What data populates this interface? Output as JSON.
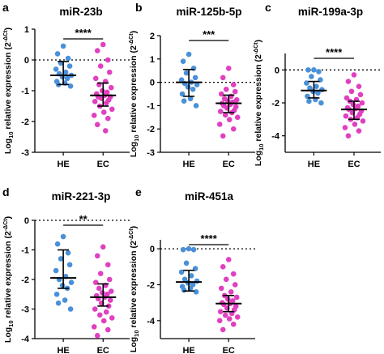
{
  "colors": {
    "HE": "#4a90d9",
    "EC": "#e040c0",
    "axis": "#000000",
    "errorbar": "#000000"
  },
  "ylabel": {
    "main_a": "Log",
    "sub": "10",
    "main_b": " relative expression (2",
    "sup": "-ΔCt",
    "main_c": ")"
  },
  "chart_data": [
    {
      "letter": "a",
      "type": "scatter",
      "title": "miR-23b",
      "categories": [
        "HE",
        "EC"
      ],
      "ylim": [
        -3,
        1
      ],
      "yticks": [
        1,
        0,
        -1,
        -2,
        -3
      ],
      "reference_line": 0,
      "significance": "****",
      "series": [
        {
          "name": "HE",
          "median": -0.5,
          "iqr": [
            -0.8,
            -0.05
          ],
          "values": [
            0.45,
            0.2,
            0.05,
            -0.1,
            -0.2,
            -0.3,
            -0.4,
            -0.45,
            -0.5,
            -0.55,
            -0.6,
            -0.7,
            -0.75,
            -0.8,
            -0.85
          ]
        },
        {
          "name": "EC",
          "median": -1.15,
          "iqr": [
            -1.5,
            -0.75
          ],
          "values": [
            0.5,
            0.3,
            0.0,
            -0.2,
            -0.4,
            -0.6,
            -0.7,
            -0.8,
            -0.9,
            -1.0,
            -1.05,
            -1.1,
            -1.15,
            -1.2,
            -1.2,
            -1.25,
            -1.3,
            -1.35,
            -1.4,
            -1.5,
            -1.6,
            -1.7,
            -1.8,
            -1.9,
            -2.1,
            -2.3
          ]
        }
      ]
    },
    {
      "letter": "b",
      "type": "scatter",
      "title": "miR-125b-5p",
      "categories": [
        "HE",
        "EC"
      ],
      "ylim": [
        -3,
        2
      ],
      "yticks": [
        2,
        1,
        0,
        -1,
        -2,
        -3
      ],
      "reference_line": 0,
      "significance": "***",
      "series": [
        {
          "name": "HE",
          "median": 0.0,
          "iqr": [
            -0.6,
            0.55
          ],
          "values": [
            1.2,
            0.9,
            0.6,
            0.4,
            0.2,
            0.1,
            0.0,
            -0.05,
            -0.1,
            -0.2,
            -0.3,
            -0.5,
            -0.7,
            -0.8,
            -1.0
          ]
        },
        {
          "name": "EC",
          "median": -0.9,
          "iqr": [
            -1.3,
            -0.55
          ],
          "values": [
            0.6,
            0.2,
            -0.1,
            -0.3,
            -0.4,
            -0.5,
            -0.6,
            -0.7,
            -0.75,
            -0.8,
            -0.85,
            -0.9,
            -0.95,
            -1.0,
            -1.05,
            -1.1,
            -1.2,
            -1.25,
            -1.3,
            -1.4,
            -1.5,
            -1.6,
            -1.8,
            -2.0,
            -2.3
          ]
        }
      ]
    },
    {
      "letter": "c",
      "type": "scatter",
      "title": "miR-199a-3p",
      "categories": [
        "HE",
        "EC"
      ],
      "ylim": [
        -5,
        1
      ],
      "yticks": [
        0,
        -2,
        -4
      ],
      "reference_line": 0,
      "significance": "****",
      "series": [
        {
          "name": "HE",
          "median": -1.25,
          "iqr": [
            -1.7,
            -0.7
          ],
          "values": [
            0.0,
            0.0,
            -0.1,
            -0.4,
            -0.6,
            -0.8,
            -1.0,
            -1.1,
            -1.2,
            -1.3,
            -1.4,
            -1.6,
            -1.8,
            -1.9,
            -2.0
          ]
        },
        {
          "name": "EC",
          "median": -2.4,
          "iqr": [
            -3.0,
            -1.9
          ],
          "values": [
            -0.3,
            -0.7,
            -1.0,
            -1.3,
            -1.5,
            -1.7,
            -1.8,
            -1.9,
            -2.0,
            -2.1,
            -2.2,
            -2.3,
            -2.35,
            -2.4,
            -2.5,
            -2.6,
            -2.7,
            -2.8,
            -2.9,
            -3.0,
            -3.1,
            -3.3,
            -3.5,
            -3.7,
            -4.0
          ]
        }
      ]
    },
    {
      "letter": "d",
      "type": "scatter",
      "title": "miR-221-3p",
      "categories": [
        "HE",
        "EC"
      ],
      "ylim": [
        -4,
        0
      ],
      "yticks": [
        0,
        -1,
        -2,
        -3,
        -4
      ],
      "reference_line": 0,
      "significance": "**",
      "series": [
        {
          "name": "HE",
          "median": -1.95,
          "iqr": [
            -2.3,
            -1.0
          ],
          "values": [
            -0.55,
            -0.8,
            -1.1,
            -1.3,
            -1.5,
            -1.7,
            -1.9,
            -2.0,
            -2.1,
            -2.2,
            -2.3,
            -2.5,
            -2.7,
            -2.8,
            -3.0
          ]
        },
        {
          "name": "EC",
          "median": -2.6,
          "iqr": [
            -2.9,
            -2.15
          ],
          "values": [
            -0.9,
            -1.2,
            -1.5,
            -1.8,
            -2.0,
            -2.1,
            -2.2,
            -2.3,
            -2.4,
            -2.45,
            -2.5,
            -2.55,
            -2.6,
            -2.65,
            -2.7,
            -2.8,
            -2.9,
            -3.0,
            -3.1,
            -3.2,
            -3.3,
            -3.4,
            -3.6,
            -3.7,
            -3.9
          ]
        }
      ]
    },
    {
      "letter": "e",
      "type": "scatter",
      "title": "miR-451a",
      "categories": [
        "HE",
        "EC"
      ],
      "ylim": [
        -5,
        0.5
      ],
      "yticks": [
        0,
        -2,
        -4
      ],
      "reference_line": 0,
      "significance": "****",
      "series": [
        {
          "name": "HE",
          "median": -1.85,
          "iqr": [
            -2.35,
            -1.2
          ],
          "values": [
            0.0,
            -0.05,
            -0.05,
            -0.8,
            -1.1,
            -1.3,
            -1.5,
            -1.7,
            -1.8,
            -1.9,
            -2.0,
            -2.1,
            -2.2,
            -2.3,
            -2.4
          ]
        },
        {
          "name": "EC",
          "median": -3.05,
          "iqr": [
            -3.5,
            -2.6
          ],
          "values": [
            -0.6,
            -1.0,
            -1.4,
            -1.7,
            -2.0,
            -2.2,
            -2.4,
            -2.6,
            -2.7,
            -2.8,
            -2.9,
            -3.0,
            -3.05,
            -3.1,
            -3.2,
            -3.3,
            -3.4,
            -3.5,
            -3.6,
            -3.7,
            -3.8,
            -3.9,
            -4.0,
            -4.2,
            -4.5
          ]
        }
      ]
    }
  ]
}
